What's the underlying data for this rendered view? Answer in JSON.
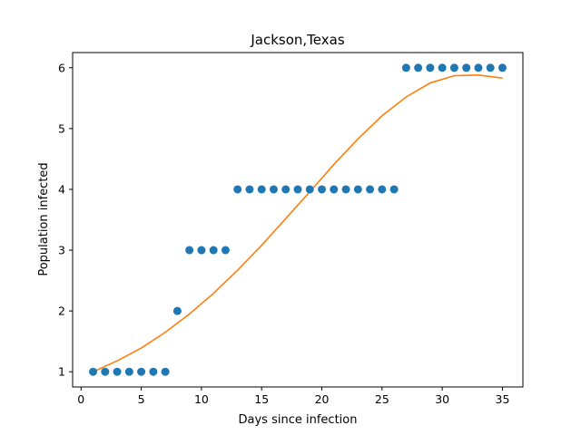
{
  "chart_data": {
    "type": "scatter",
    "title": "Jackson,Texas",
    "xlabel": "Days since infection",
    "ylabel": "Population infected",
    "xlim": [
      -0.7,
      36.7
    ],
    "ylim": [
      0.75,
      6.25
    ],
    "xticks": [
      0,
      5,
      10,
      15,
      20,
      25,
      30,
      35
    ],
    "yticks": [
      1,
      2,
      3,
      4,
      5,
      6
    ],
    "grid": false,
    "colors": {
      "points": "#1f77b4",
      "fit": "#ff7f0e"
    },
    "points": {
      "x": [
        1,
        2,
        3,
        4,
        5,
        6,
        7,
        8,
        9,
        10,
        11,
        12,
        13,
        14,
        15,
        16,
        17,
        18,
        19,
        20,
        21,
        22,
        23,
        24,
        25,
        26,
        27,
        28,
        29,
        30,
        31,
        32,
        33,
        34,
        35
      ],
      "y": [
        1,
        1,
        1,
        1,
        1,
        1,
        1,
        2,
        3,
        3,
        3,
        3,
        4,
        4,
        4,
        4,
        4,
        4,
        4,
        4,
        4,
        4,
        4,
        4,
        4,
        4,
        6,
        6,
        6,
        6,
        6,
        6,
        6,
        6,
        6
      ]
    },
    "fit": {
      "x": [
        1,
        3,
        5,
        7,
        9,
        11,
        13,
        15,
        17,
        19,
        21,
        23,
        25,
        27,
        29,
        31,
        33,
        35
      ],
      "y": [
        1.0,
        1.18,
        1.39,
        1.65,
        1.95,
        2.29,
        2.67,
        3.08,
        3.52,
        3.96,
        4.41,
        4.83,
        5.21,
        5.52,
        5.75,
        5.87,
        5.88,
        5.83
      ]
    }
  }
}
